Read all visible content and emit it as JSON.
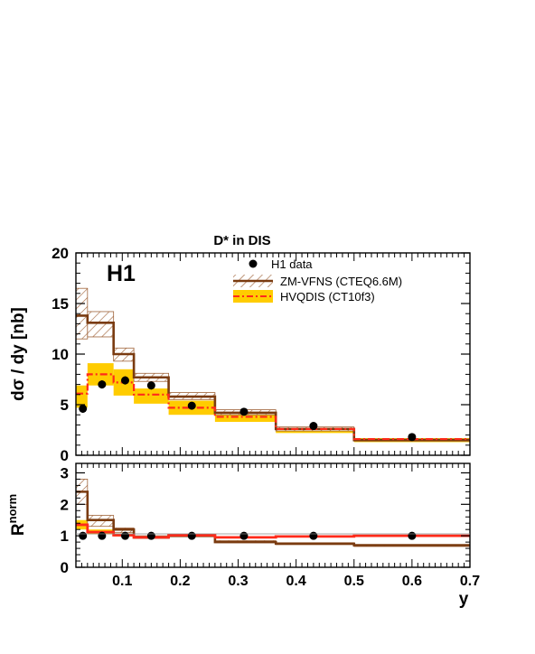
{
  "chart_data": {
    "type": "line",
    "title": "D* in DIS",
    "experiment_label": "H1",
    "xlabel": "y",
    "bins": [
      [
        0.02,
        0.04
      ],
      [
        0.04,
        0.085
      ],
      [
        0.085,
        0.12
      ],
      [
        0.12,
        0.18
      ],
      [
        0.18,
        0.26
      ],
      [
        0.26,
        0.365
      ],
      [
        0.365,
        0.5
      ],
      [
        0.5,
        0.7
      ]
    ],
    "x_ticks": [
      "0.1",
      "0.2",
      "0.3",
      "0.4",
      "0.5",
      "0.6",
      "0.7"
    ],
    "xlim": [
      0.02,
      0.7
    ],
    "legend": {
      "position": "top-right",
      "entries": [
        "H1 data",
        "ZM-VFNS (CTEQ6.6M)",
        "HVQDIS (CT10f3)"
      ]
    },
    "top_panel": {
      "ylabel": "dσ / dy [nb]",
      "ylim": [
        0,
        20
      ],
      "y_ticks": [
        "0",
        "5",
        "10",
        "15",
        "20"
      ],
      "data": {
        "name": "H1 data",
        "x": [
          0.032,
          0.065,
          0.105,
          0.15,
          0.22,
          0.31,
          0.43,
          0.6
        ],
        "y": [
          4.6,
          7.0,
          7.4,
          6.9,
          4.9,
          4.3,
          2.9,
          1.8
        ],
        "err": [
          0.4,
          0.4,
          0.4,
          0.4,
          0.3,
          0.3,
          0.2,
          0.15
        ]
      },
      "zmvfns": {
        "name": "ZM-VFNS (CTEQ6.6M)",
        "central": [
          13.8,
          13.1,
          10.0,
          7.7,
          5.8,
          4.2,
          2.6,
          1.5
        ],
        "low": [
          11.5,
          11.7,
          9.3,
          7.3,
          5.5,
          4.0,
          2.4,
          1.4
        ],
        "high": [
          16.5,
          14.2,
          10.6,
          8.1,
          6.2,
          4.5,
          2.8,
          1.6
        ]
      },
      "hvqdis": {
        "name": "HVQDIS (CT10f3)",
        "central": [
          6.1,
          8.0,
          7.2,
          6.0,
          4.7,
          3.8,
          2.6,
          1.6
        ],
        "low": [
          4.7,
          6.9,
          5.9,
          5.1,
          4.0,
          3.3,
          2.2,
          1.3
        ],
        "high": [
          6.9,
          9.1,
          8.5,
          6.6,
          5.4,
          4.3,
          2.8,
          1.7
        ]
      }
    },
    "bottom_panel": {
      "ylabel": "R",
      "ylabel_superscript": "norm",
      "ylim": [
        0,
        3.3
      ],
      "y_ticks": [
        "0",
        "1",
        "2",
        "3"
      ],
      "data": {
        "y": [
          1.0,
          1.0,
          1.0,
          1.0,
          1.0,
          1.0,
          1.0,
          1.0
        ],
        "err": [
          0.1,
          0.06,
          0.06,
          0.06,
          0.06,
          0.06,
          0.06,
          0.06
        ]
      },
      "zmvfns": {
        "central": [
          2.4,
          1.5,
          1.2,
          0.95,
          1.0,
          0.8,
          0.75,
          0.7
        ],
        "low": [
          2.0,
          1.3,
          1.1,
          0.92,
          0.97,
          0.78,
          0.72,
          0.66
        ],
        "high": [
          2.8,
          1.65,
          1.25,
          1.0,
          1.03,
          0.85,
          0.78,
          0.72
        ]
      },
      "hvqdis": {
        "central": [
          1.35,
          1.12,
          1.02,
          0.95,
          1.02,
          0.95,
          0.98,
          1.0
        ],
        "low": [
          1.2,
          1.05,
          0.98,
          0.92,
          0.98,
          0.92,
          0.95,
          0.97
        ],
        "high": [
          1.5,
          1.2,
          1.07,
          0.99,
          1.06,
          0.98,
          1.01,
          1.03
        ]
      }
    },
    "colors": {
      "zmvfns": "#7a3b10",
      "zmvfns_hatch": "#a0643a",
      "hvqdis_band": "#ffcc00",
      "hvqdis_line": "#ff2a1a",
      "data": "#000000"
    }
  }
}
